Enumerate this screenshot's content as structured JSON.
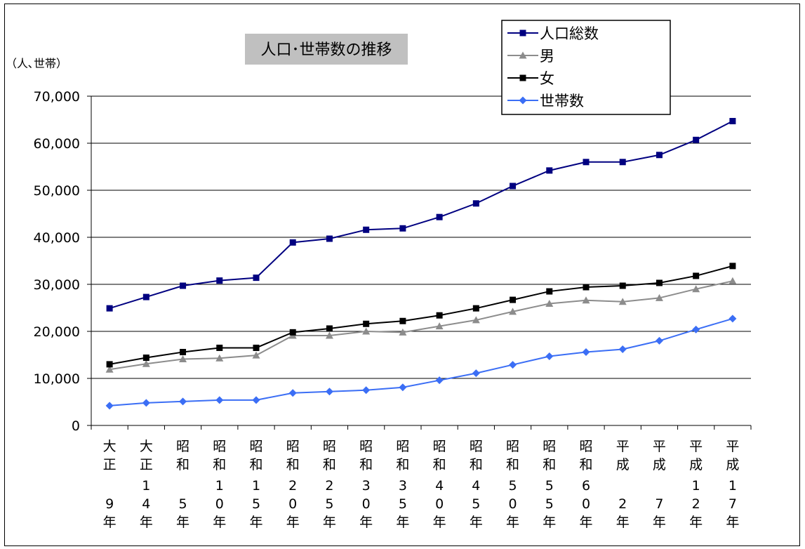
{
  "chart_data": {
    "type": "line",
    "title": "人口･世帯数の推移",
    "ylabel": "（人､世帯）",
    "ylim": [
      0,
      70000
    ],
    "yticks": [
      "0",
      "10,000",
      "20,000",
      "30,000",
      "40,000",
      "50,000",
      "60,000",
      "70,000"
    ],
    "categories": [
      [
        "大",
        "正",
        "",
        "9",
        "年"
      ],
      [
        "大",
        "正",
        "1",
        "4",
        "年"
      ],
      [
        "昭",
        "和",
        "",
        "5",
        "年"
      ],
      [
        "昭",
        "和",
        "1",
        "0",
        "年"
      ],
      [
        "昭",
        "和",
        "1",
        "5",
        "年"
      ],
      [
        "昭",
        "和",
        "2",
        "0",
        "年"
      ],
      [
        "昭",
        "和",
        "2",
        "5",
        "年"
      ],
      [
        "昭",
        "和",
        "3",
        "0",
        "年"
      ],
      [
        "昭",
        "和",
        "3",
        "5",
        "年"
      ],
      [
        "昭",
        "和",
        "4",
        "0",
        "年"
      ],
      [
        "昭",
        "和",
        "4",
        "5",
        "年"
      ],
      [
        "昭",
        "和",
        "5",
        "0",
        "年"
      ],
      [
        "昭",
        "和",
        "5",
        "5",
        "年"
      ],
      [
        "昭",
        "和",
        "6",
        "0",
        "年"
      ],
      [
        "平",
        "成",
        "",
        "2",
        "年"
      ],
      [
        "平",
        "成",
        "",
        "7",
        "年"
      ],
      [
        "平",
        "成",
        "1",
        "2",
        "年"
      ],
      [
        "平",
        "成",
        "1",
        "7",
        "年"
      ]
    ],
    "series": [
      {
        "name": "人口総数",
        "color": "#000080",
        "marker": "square",
        "values": [
          24900,
          27300,
          29700,
          30800,
          31400,
          38900,
          39700,
          41600,
          41900,
          44300,
          47200,
          50900,
          54200,
          56000,
          56000,
          57500,
          60700,
          64700
        ]
      },
      {
        "name": "男",
        "color": "#8c8c8c",
        "marker": "triangle",
        "values": [
          11900,
          13100,
          14100,
          14300,
          14900,
          19100,
          19100,
          20000,
          19800,
          21100,
          22400,
          24200,
          25900,
          26600,
          26300,
          27100,
          29000,
          30700
        ]
      },
      {
        "name": "女",
        "color": "#000000",
        "marker": "square",
        "values": [
          13000,
          14400,
          15600,
          16500,
          16500,
          19800,
          20600,
          21600,
          22200,
          23400,
          24900,
          26700,
          28500,
          29400,
          29700,
          30300,
          31800,
          33900
        ]
      },
      {
        "name": "世帯数",
        "color": "#3b6ef5",
        "marker": "diamond",
        "values": [
          4200,
          4800,
          5100,
          5400,
          5400,
          6900,
          7200,
          7500,
          8100,
          9600,
          11100,
          12900,
          14700,
          15600,
          16200,
          18000,
          20400,
          22700
        ]
      }
    ],
    "grid": true,
    "legend": "top-right"
  }
}
